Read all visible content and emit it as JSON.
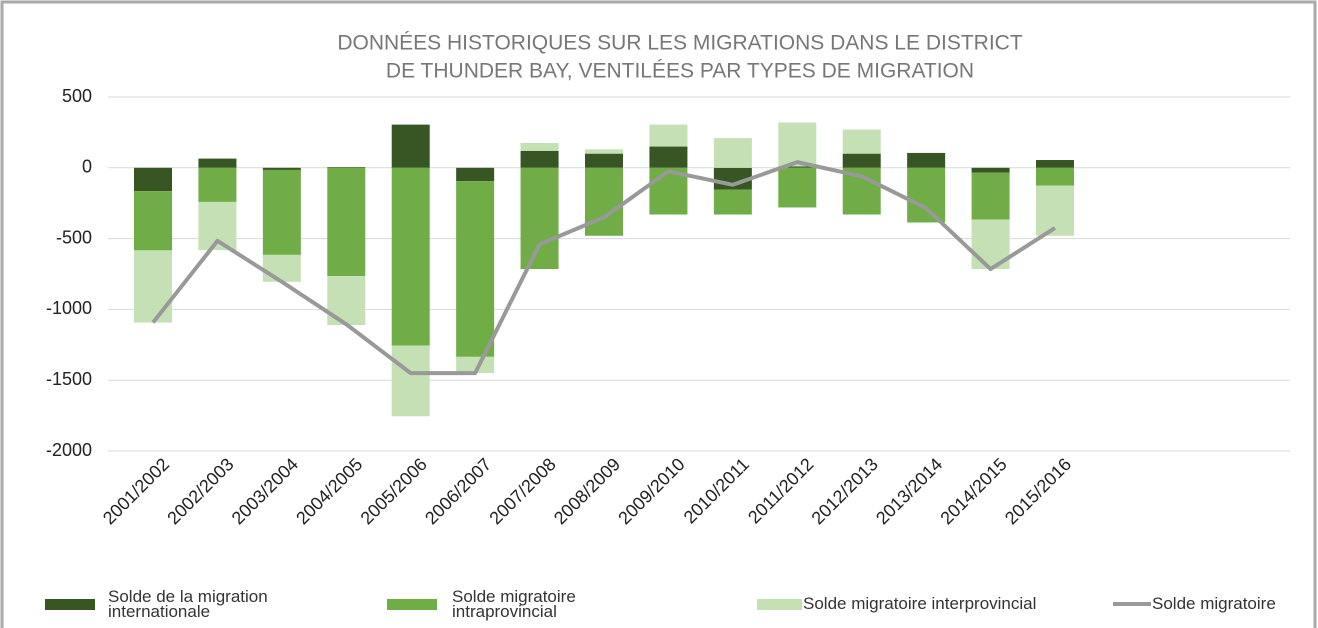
{
  "chart_data": {
    "type": "bar",
    "title": [
      "DONNÉES HISTORIQUES SUR LES MIGRATIONS DANS LE DISTRICT",
      "DE THUNDER BAY, VENTILÉES PAR TYPES DE MIGRATION"
    ],
    "categories": [
      "2001/2002",
      "2002/2003",
      "2003/2004",
      "2004/2005",
      "2005/2006",
      "2006/2007",
      "2007/2008",
      "2008/2009",
      "2009/2010",
      "2010/2011",
      "2011/2012",
      "2012/2013",
      "2013/2014",
      "2014/2015",
      "2015/2016"
    ],
    "series": [
      {
        "name": "Solde de la migration internationale",
        "color": "#375623",
        "type": "bar",
        "values": [
          -165,
          65,
          -15,
          5,
          305,
          -95,
          120,
          100,
          150,
          -155,
          10,
          100,
          105,
          -35,
          55
        ]
      },
      {
        "name": "Solde migratoire intraprovincial",
        "color": "#70ad47",
        "type": "bar",
        "values": [
          -418,
          -241,
          -600,
          -765,
          -1255,
          -1240,
          -715,
          -480,
          -330,
          -175,
          -280,
          -330,
          -385,
          -330,
          -125
        ]
      },
      {
        "name": "Solde migratoire interprovincial",
        "color": "#c5e0b4",
        "type": "bar",
        "values": [
          -510,
          -340,
          -190,
          -345,
          -500,
          -115,
          55,
          30,
          155,
          210,
          310,
          170,
          -5,
          -350,
          -355
        ]
      },
      {
        "name": "Solde migratoire",
        "color": "#999999",
        "type": "line",
        "values": [
          -1093,
          -516,
          -805,
          -1105,
          -1450,
          -1450,
          -540,
          -350,
          -25,
          -120,
          40,
          -60,
          -285,
          -715,
          -425
        ]
      }
    ],
    "ylim": [
      -2000,
      500
    ],
    "yticks": [
      -2000,
      -1500,
      -1000,
      -500,
      0,
      500
    ],
    "grid": true
  }
}
